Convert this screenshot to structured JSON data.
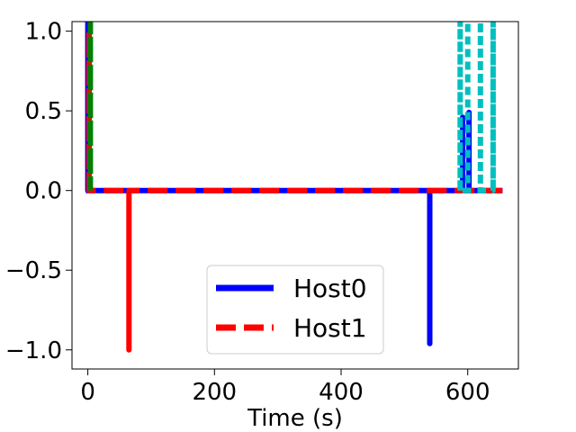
{
  "chart_data": {
    "type": "line",
    "title": "",
    "xlabel": "Time (s)",
    "ylabel": "",
    "xlim": [
      -25,
      680
    ],
    "ylim": [
      -1.12,
      1.06
    ],
    "x_ticks": [
      0,
      200,
      400,
      600
    ],
    "x_tick_labels": [
      "0",
      "200",
      "400",
      "600"
    ],
    "y_ticks": [
      -1.0,
      -0.5,
      0.0,
      0.5,
      1.0
    ],
    "y_tick_labels": [
      "−1.0",
      "−0.5",
      "0.0",
      "0.5",
      "1.0"
    ],
    "grid": false,
    "legend_position": "bottom-center",
    "series": [
      {
        "name": "Host0",
        "color": "#0000ff",
        "style": "solid",
        "points": [
          [
            -3,
            0
          ],
          [
            0,
            0
          ],
          [
            0,
            1.06
          ],
          [
            0,
            0
          ],
          [
            540,
            0
          ],
          [
            540,
            -0.96
          ],
          [
            540,
            0
          ],
          [
            592,
            0
          ],
          [
            592,
            0.46
          ],
          [
            592,
            0
          ],
          [
            602,
            0
          ],
          [
            602,
            0.49
          ],
          [
            602,
            0
          ],
          [
            655,
            0
          ]
        ]
      },
      {
        "name": "Host1",
        "color": "#ff0000",
        "style": "dashed",
        "points": [
          [
            0,
            0
          ],
          [
            2,
            0
          ],
          [
            2,
            1.0
          ],
          [
            2,
            0
          ],
          [
            65,
            0
          ],
          [
            65,
            -1.0
          ],
          [
            65,
            0
          ],
          [
            655,
            0
          ]
        ]
      },
      {
        "name": "",
        "color": "#008000",
        "style": "dashdot",
        "points": [
          [
            4,
            0
          ],
          [
            4,
            1.06
          ],
          [
            4,
            0
          ]
        ]
      },
      {
        "name": "",
        "color": "#00bfbf",
        "style": "dotted",
        "points": [
          [
            588,
            0
          ],
          [
            588,
            1.06
          ],
          [
            588,
            0
          ],
          [
            600,
            0
          ],
          [
            600,
            1.06
          ],
          [
            600,
            0
          ],
          [
            620,
            0
          ],
          [
            620,
            1.06
          ],
          [
            620,
            0
          ],
          [
            640,
            0
          ],
          [
            640,
            1.06
          ],
          [
            640,
            0
          ]
        ]
      }
    ]
  }
}
